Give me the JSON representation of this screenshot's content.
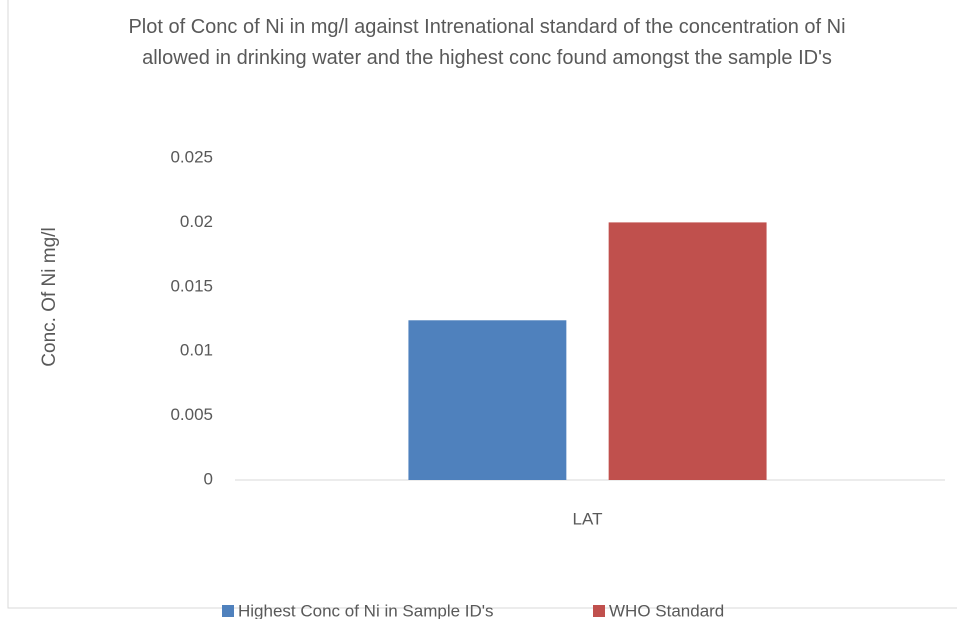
{
  "chart_data": {
    "type": "bar",
    "title": "Plot of Conc of Ni in mg/l  against  Intrenational standard of the concentration of Ni allowed in drinking water and the highest conc found amongst the sample ID's",
    "y_label": "Conc. Of Ni mg/l",
    "categories": [
      "LAT"
    ],
    "series": [
      {
        "name": "Highest Conc of Ni in Sample ID's",
        "color": "#4f81bd",
        "values": [
          0.0124
        ]
      },
      {
        "name": "WHO Standard",
        "color": "#c0504d",
        "values": [
          0.02
        ]
      }
    ],
    "ylim": [
      0,
      0.025
    ],
    "yticks": [
      0,
      0.005,
      0.01,
      0.015,
      0.02,
      0.025
    ],
    "grid": false,
    "legend": "bottom"
  }
}
